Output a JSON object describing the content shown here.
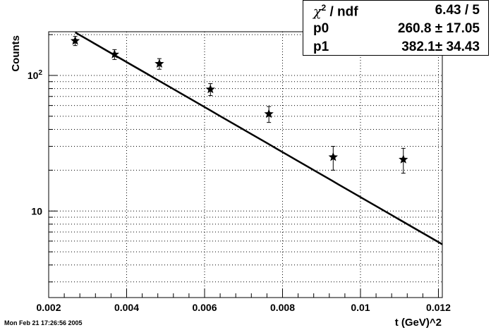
{
  "chart_data": {
    "type": "scatter",
    "xlabel": "t (GeV)^2",
    "ylabel": "Counts",
    "xlim": [
      0.002,
      0.0121
    ],
    "ylim": [
      2.3,
      210
    ],
    "yscale": "log",
    "grid": true,
    "x_ticks": [
      0.002,
      0.004,
      0.006,
      0.008,
      0.01,
      0.012
    ],
    "x_tick_labels": [
      "0.002",
      "0.004",
      "0.006",
      "0.008",
      "0.01",
      "0.012"
    ],
    "y_tick_labels": [
      {
        "value": 10,
        "base": "10",
        "exp": ""
      },
      {
        "value": 100,
        "base": "10",
        "exp": "2"
      }
    ],
    "points": [
      {
        "x": 0.00268,
        "y": 180,
        "err": 14
      },
      {
        "x": 0.00369,
        "y": 143,
        "err": 12
      },
      {
        "x": 0.00484,
        "y": 122,
        "err": 11
      },
      {
        "x": 0.00615,
        "y": 79,
        "err": 8
      },
      {
        "x": 0.00765,
        "y": 52,
        "err": 7
      },
      {
        "x": 0.0093,
        "y": 25,
        "err": 5
      },
      {
        "x": 0.0111,
        "y": 24,
        "err": 5
      }
    ],
    "fit": {
      "p0": 260.8,
      "p1": 382.1,
      "x_start": 0.00268,
      "x_end": 0.0121
    }
  },
  "stats": {
    "chi_label": "/ ndf",
    "chi_value": "6.43 / 5",
    "p0_label": "p0",
    "p0_value": "260.8 ± 17.05",
    "p1_label": "p1",
    "p1_value": "382.1± 34.43"
  },
  "footer": "Mon Feb 21 17:26:56 2005"
}
